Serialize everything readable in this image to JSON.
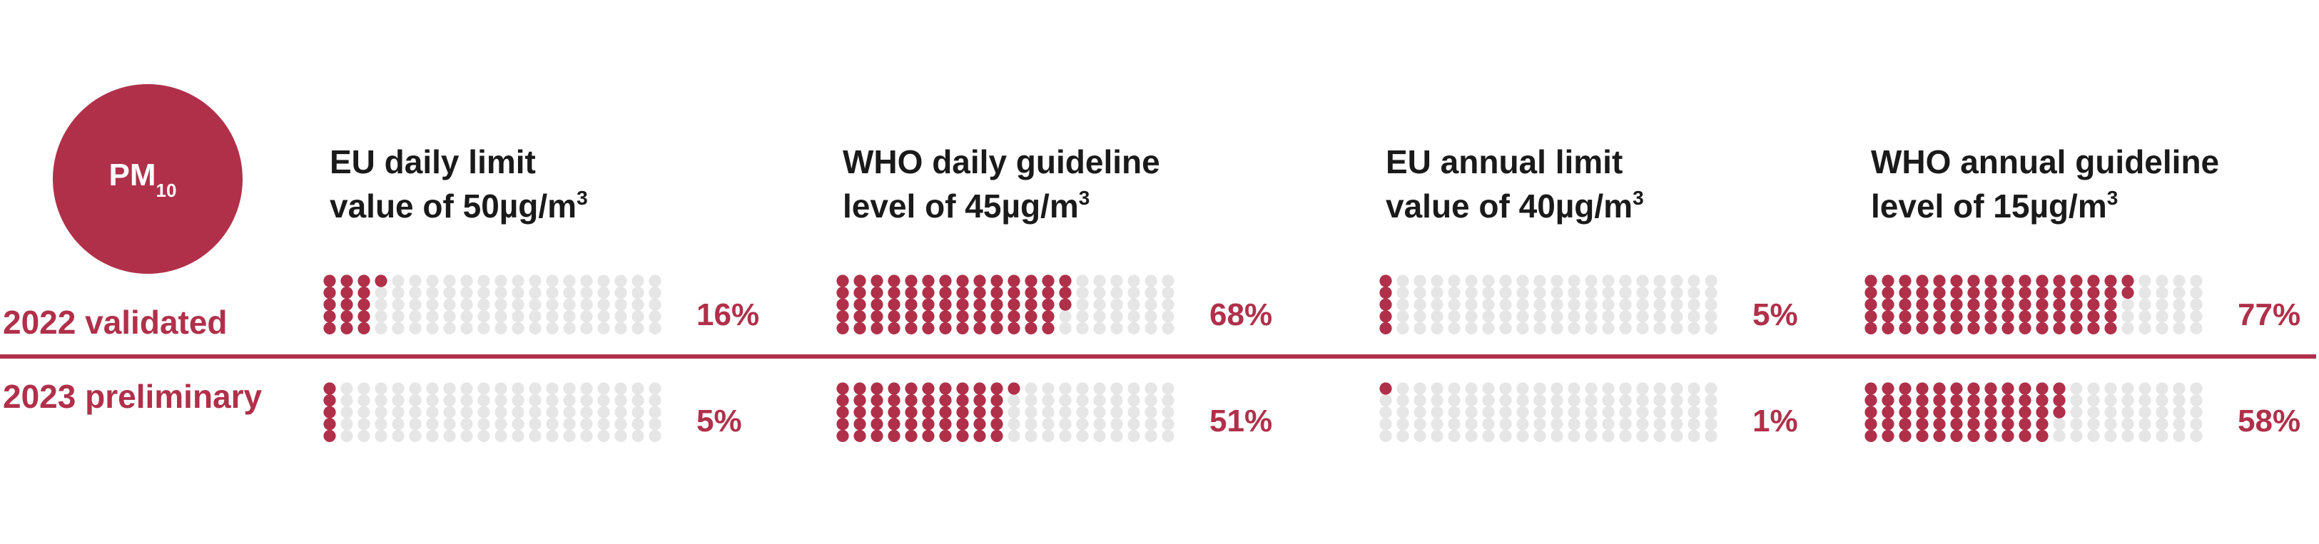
{
  "chart_data": {
    "type": "waffle",
    "title": {
      "text": "PM",
      "sub": "10"
    },
    "categories": [
      {
        "line1": "EU daily limit",
        "line2": "value of 50µg/m",
        "sup": "3"
      },
      {
        "line1": "WHO daily guideline",
        "line2": "level of 45µg/m",
        "sup": "3"
      },
      {
        "line1": "EU annual limit",
        "line2": "value of 40µg/m",
        "sup": "3"
      },
      {
        "line1": "WHO annual guideline",
        "line2": "level of 15µg/m",
        "sup": "3"
      }
    ],
    "series": [
      {
        "name": "2022 validated",
        "color": "#b0304a",
        "values": [
          16,
          68,
          5,
          77
        ],
        "value_labels": [
          "16%",
          "68%",
          "5%",
          "77%"
        ]
      },
      {
        "name": "2023 preliminary",
        "color": "#b0304a",
        "values": [
          5,
          51,
          1,
          58
        ],
        "value_labels": [
          "5%",
          "51%",
          "1%",
          "58%"
        ]
      }
    ],
    "empty_color": "#e6e6e6"
  }
}
